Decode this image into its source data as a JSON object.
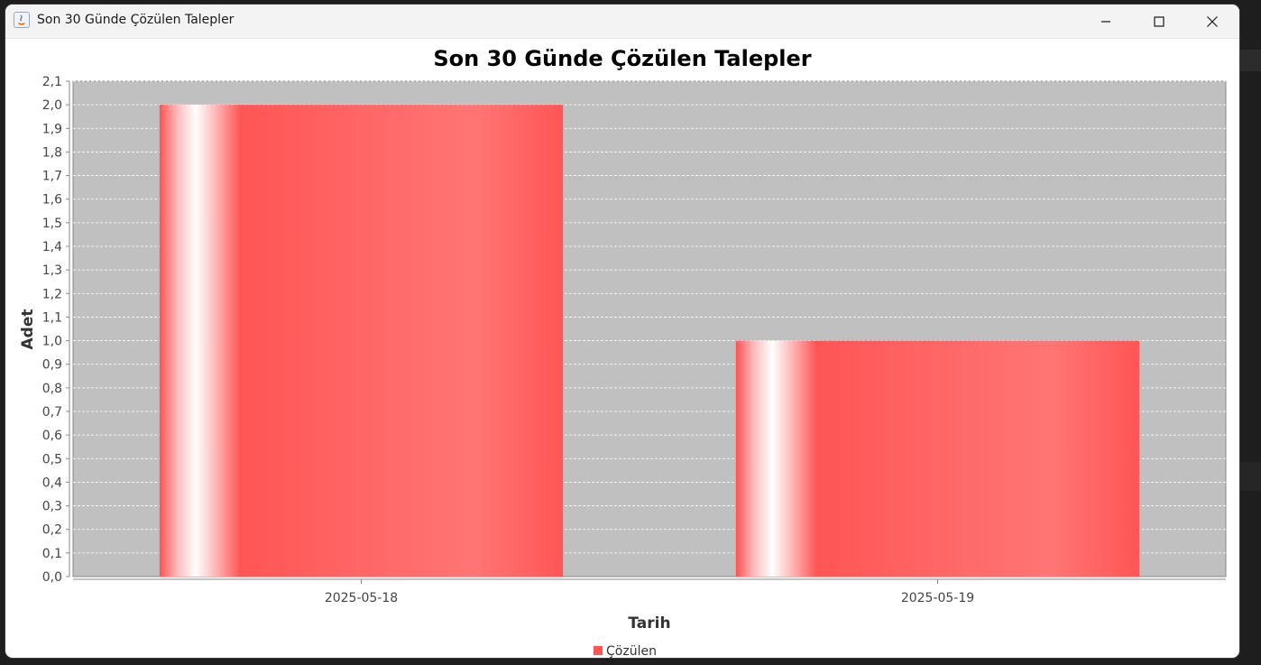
{
  "window": {
    "title": "Son 30 Günde Çözülen Talepler",
    "icons": [
      "java-app-icon",
      "minimize-icon",
      "maximize-icon",
      "close-icon"
    ]
  },
  "colors": {
    "plot_background": "#c0c0c0",
    "bar_base": "#ff5555",
    "bar_highlight": "#ffffff",
    "gridline": "#ffffff",
    "text": "#333333"
  },
  "chart_data": {
    "type": "bar",
    "title": "Son 30 Günde Çözülen Talepler",
    "xlabel": "Tarih",
    "ylabel": "Adet",
    "categories": [
      "2025-05-18",
      "2025-05-19"
    ],
    "series": [
      {
        "name": "Çözülen",
        "values": [
          2,
          1
        ]
      }
    ],
    "ylim": [
      0,
      2.1
    ],
    "ytick_step": 0.1,
    "yticks": [
      "0,0",
      "0,1",
      "0,2",
      "0,3",
      "0,4",
      "0,5",
      "0,6",
      "0,7",
      "0,8",
      "0,9",
      "1,0",
      "1,1",
      "1,2",
      "1,3",
      "1,4",
      "1,5",
      "1,6",
      "1,7",
      "1,8",
      "1,9",
      "2,0",
      "2,1"
    ],
    "grid": true,
    "legend": "bottom-center"
  }
}
